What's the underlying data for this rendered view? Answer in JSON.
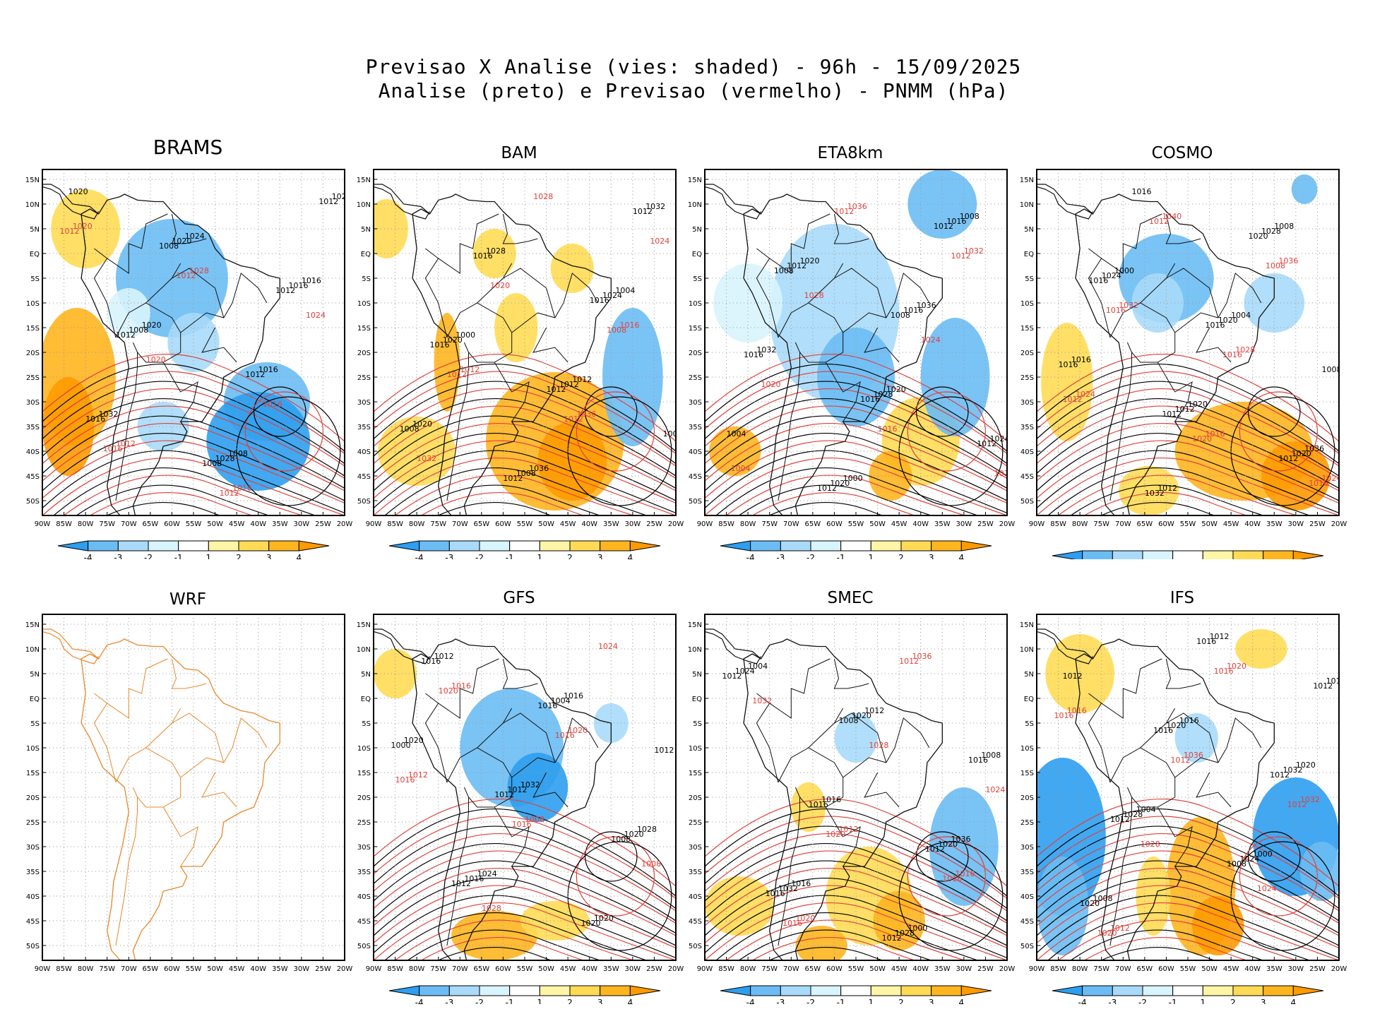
{
  "title_line1": "Previsao X Analise (vies: shaded) - 96h - 15/09/2025",
  "title_line2": "Analise (preto) e Previsao (vermelho) - PNMM (hPa)",
  "lat_labels": [
    "15N",
    "10N",
    "5N",
    "EQ",
    "5S",
    "10S",
    "15S",
    "20S",
    "25S",
    "30S",
    "35S",
    "40S",
    "45S",
    "50S"
  ],
  "lon_labels": [
    "90W",
    "85W",
    "80W",
    "75W",
    "70W",
    "65W",
    "60W",
    "55W",
    "50W",
    "45W",
    "40W",
    "35W",
    "30W",
    "25W",
    "20W"
  ],
  "colorbar_ticks": [
    "-4",
    "-3",
    "-2",
    "-1",
    "1",
    "2",
    "3",
    "4"
  ],
  "colorbar_colors": [
    "#2d9ef0",
    "#6cbcf4",
    "#a9daf9",
    "#d8f4fd",
    "#ffffff",
    "#fff5a6",
    "#ffdb55",
    "#ffb51f",
    "#ff9a00"
  ],
  "panels": [
    {
      "name": "BRAMS",
      "has_data": true,
      "pos": "row1-col1",
      "black_labels": [
        "1012",
        "1012",
        "1008",
        "1012",
        "1008",
        "1016",
        "1012",
        "1008",
        "1016",
        "1020",
        "1024",
        "1028",
        "1032",
        "1016",
        "1020",
        "1016",
        "1024",
        "1020",
        "1008"
      ],
      "red_labels": [
        "1012",
        "1012",
        "1012",
        "1016",
        "1016",
        "1020",
        "1024",
        "1028",
        "1020",
        "1016",
        "1012"
      ]
    },
    {
      "name": "BAM",
      "has_data": true,
      "pos": "row1-col2",
      "black_labels": [
        "1012",
        "1008",
        "1012",
        "1016",
        "1016",
        "1016",
        "1012",
        "1008",
        "1008",
        "1012",
        "1020",
        "1024",
        "1028",
        "1032",
        "1036",
        "1020",
        "1012",
        "1000",
        "1004"
      ],
      "red_labels": [
        "1012",
        "1012",
        "1008",
        "1020",
        "1024",
        "1028",
        "1032",
        "1036",
        "1012",
        "1016"
      ]
    },
    {
      "name": "ETA8km",
      "has_data": true,
      "pos": "row1-col3",
      "black_labels": [
        "1008",
        "1008",
        "1012",
        "1012",
        "1012",
        "1016",
        "1016",
        "1016",
        "1012",
        "1016",
        "1020",
        "1024",
        "1028",
        "1032",
        "1036",
        "1020",
        "1008",
        "1000",
        "1004",
        "1020"
      ],
      "red_labels": [
        "1012",
        "1012",
        "1016",
        "1016",
        "1020",
        "1024",
        "1028",
        "1032",
        "1036",
        "1004"
      ]
    },
    {
      "name": "COSMO",
      "has_data": true,
      "pos": "row1-col4",
      "black_labels": [
        "1012",
        "1012",
        "1008",
        "1016",
        "1016",
        "1020",
        "1016",
        "1020",
        "1012",
        "1016",
        "1020",
        "1024",
        "1028",
        "1032",
        "1036",
        "1020",
        "1016",
        "1004",
        "1000",
        "1008",
        "1012"
      ],
      "red_labels": [
        "1012",
        "1016",
        "1016",
        "1008",
        "1012",
        "1016",
        "1020",
        "1024",
        "1028",
        "1032",
        "1036",
        "1040",
        "1024",
        "1016"
      ]
    },
    {
      "name": "WRF",
      "has_data": false,
      "pos": "row2-col1",
      "black_labels": [],
      "red_labels": []
    },
    {
      "name": "GFS",
      "has_data": true,
      "pos": "row2-col2",
      "black_labels": [
        "1012",
        "1008",
        "1012",
        "1012",
        "1016",
        "1016",
        "1020",
        "1016",
        "1020",
        "1012",
        "1000",
        "1004",
        "1012",
        "1020",
        "1024",
        "1028",
        "1032",
        "1020",
        "1016"
      ],
      "red_labels": [
        "1016",
        "1016",
        "1016",
        "1020",
        "1024",
        "1028",
        "1008",
        "1008",
        "1012",
        "1020",
        "1016"
      ]
    },
    {
      "name": "SMEC",
      "has_data": true,
      "pos": "row2-col3",
      "black_labels": [
        "1008",
        "1012",
        "1012",
        "1016",
        "1012",
        "1016",
        "1016",
        "1020",
        "1024",
        "1028",
        "1032",
        "1020",
        "1016",
        "1008",
        "1012",
        "1004",
        "1000",
        "1016",
        "1036"
      ],
      "red_labels": [
        "1012",
        "1016",
        "1016",
        "1020",
        "1024",
        "1028",
        "1032",
        "1036",
        "1020",
        "1016",
        "1012"
      ]
    },
    {
      "name": "IFS",
      "has_data": true,
      "pos": "row2-col4",
      "black_labels": [
        "1008",
        "1012",
        "1012",
        "1016",
        "1012",
        "1016",
        "1020",
        "1024",
        "1028",
        "1032",
        "1020",
        "1016",
        "1012",
        "1008",
        "1000",
        "1004",
        "1020",
        "1016",
        "1012"
      ],
      "red_labels": [
        "1012",
        "1012",
        "1016",
        "1016",
        "1020",
        "1024",
        "1028",
        "1032",
        "1036",
        "1016",
        "1020",
        "1012"
      ]
    }
  ]
}
